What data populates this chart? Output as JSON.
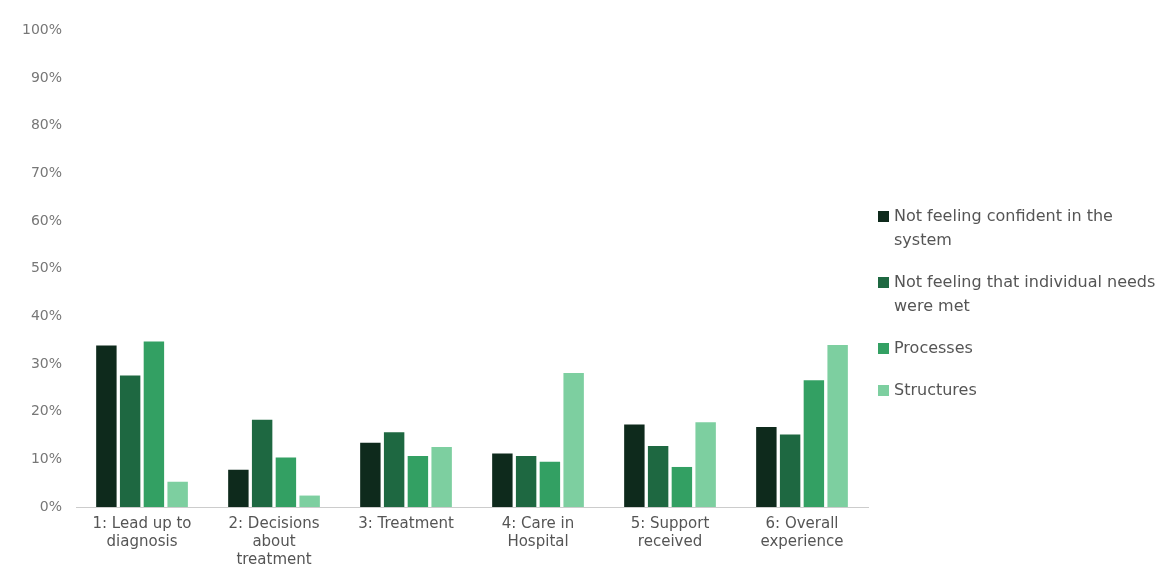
{
  "chart_data": {
    "type": "bar",
    "categories": [
      "1: Lead up to diagnosis",
      "2: Decisions about treatment",
      "3: Treatment",
      "4: Care in Hospital",
      "5: Support received",
      "6: Overall experience"
    ],
    "series": [
      {
        "name": "Not feeling confident in the system",
        "color": "#0e2a1c",
        "values": [
          33.9,
          7.8,
          13.5,
          11.2,
          17.3,
          16.8
        ]
      },
      {
        "name": "Not feeling that individual needs were met",
        "color": "#1e6841",
        "values": [
          27.6,
          18.3,
          15.7,
          10.7,
          12.8,
          15.2
        ]
      },
      {
        "name": "Processes",
        "color": "#33a063",
        "values": [
          34.7,
          10.4,
          10.7,
          9.5,
          8.4,
          26.6
        ]
      },
      {
        "name": "Structures",
        "color": "#7dcfa0",
        "values": [
          5.3,
          2.4,
          12.6,
          28.1,
          17.8,
          34.0
        ]
      }
    ],
    "ylim": [
      0,
      100
    ],
    "yticks": [
      {
        "value": 0,
        "label": "0%"
      },
      {
        "value": 10,
        "label": "10%"
      },
      {
        "value": 20,
        "label": "20%"
      },
      {
        "value": 30,
        "label": "30%"
      },
      {
        "value": 40,
        "label": "40%"
      },
      {
        "value": 50,
        "label": "50%"
      },
      {
        "value": 60,
        "label": "60%"
      },
      {
        "value": 70,
        "label": "70%"
      },
      {
        "value": 80,
        "label": "80%"
      },
      {
        "value": 90,
        "label": "90%"
      },
      {
        "value": 100,
        "label": "100%"
      }
    ],
    "grid": false,
    "legend": "right"
  }
}
